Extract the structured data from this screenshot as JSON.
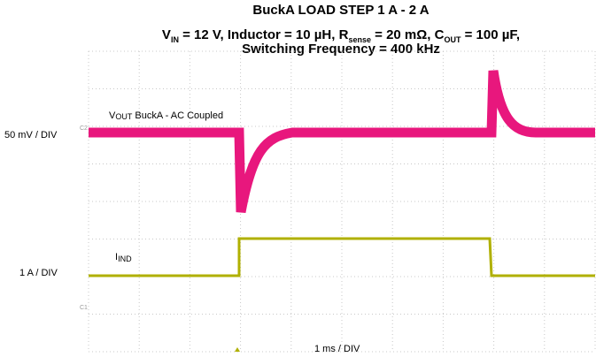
{
  "title": "BuckA LOAD STEP 1 A - 2 A",
  "subtitle_parts": [
    "V",
    "IN",
    " = 12 V, Inductor = 10 µH, R",
    "sense",
    " = 20 mΩ, C",
    "OUT",
    " = 100 µF,"
  ],
  "subtitle_line2": "Switching Frequency = 400 kHz",
  "channel_labels": {
    "top_scale": "50 mV / DIV",
    "bottom_scale": "1 A / DIV",
    "time_scale": "1 ms / DIV"
  },
  "trace_labels": {
    "vout": [
      "V",
      "OUT",
      " BuckA - AC Coupled"
    ],
    "iind": [
      "I",
      "IND"
    ]
  },
  "channel_markers": [
    "C2",
    "C1"
  ]
}
